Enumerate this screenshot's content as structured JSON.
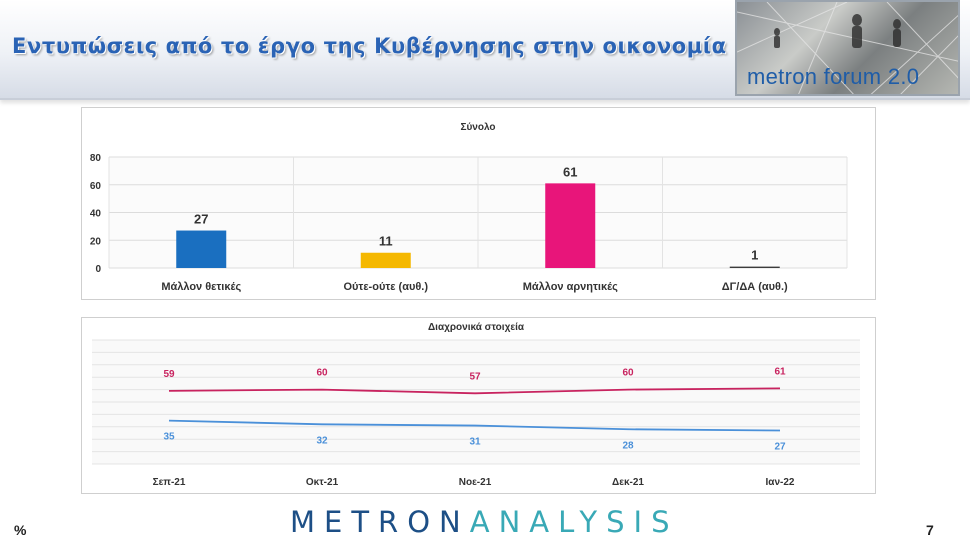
{
  "header": {
    "title": "Εντυπώσεις από το έργο της Κυβέρνησης στην οικονομία",
    "logo_text": "metron forum 2.0"
  },
  "chart_data": [
    {
      "type": "bar",
      "title": "Σύνολο",
      "categories": [
        "Μάλλον θετικές",
        "Ούτε-ούτε (αυθ.)",
        "Μάλλον αρνητικές",
        "ΔΓ/ΔΑ (αυθ.)"
      ],
      "values": [
        27,
        11,
        61,
        1
      ],
      "colors": [
        "#1a6fc0",
        "#f5b800",
        "#e8157a",
        "#3c3c3c"
      ],
      "ylim": [
        0,
        80
      ],
      "yticks": [
        0,
        20,
        40,
        60,
        80
      ],
      "grid": true,
      "data_labels": true
    },
    {
      "type": "line",
      "title": "Διαχρονικά στοιχεία",
      "categories": [
        "Σεπ-21",
        "Οκτ-21",
        "Νοε-21",
        "Δεκ-21",
        "Ιαν-22"
      ],
      "series": [
        {
          "values": [
            59,
            60,
            57,
            60,
            61
          ],
          "color": "#c8235f"
        },
        {
          "values": [
            35,
            32,
            31,
            28,
            27
          ],
          "color": "#4a90d9"
        }
      ],
      "ylim": [
        0,
        100
      ],
      "grid": true,
      "data_labels": true
    }
  ],
  "footer": {
    "brand_left": "METRON",
    "brand_right": "ANALYSIS",
    "unit": "%",
    "page_number": "7"
  }
}
